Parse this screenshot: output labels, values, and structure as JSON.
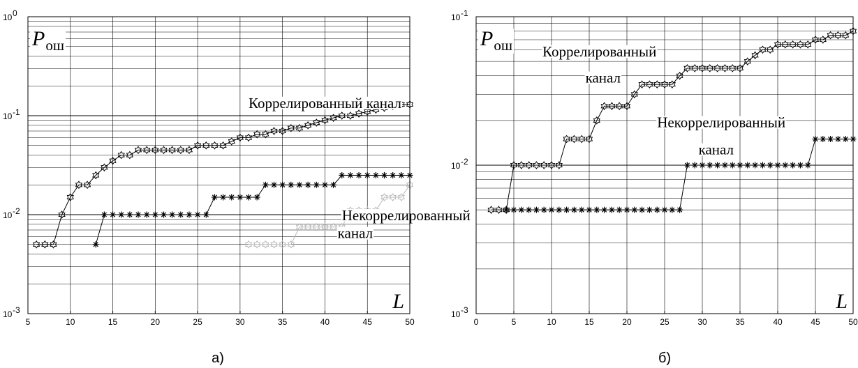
{
  "chart_data": [
    {
      "type": "line",
      "panel_label": "а)",
      "y_label_symbol": "P",
      "y_label_sub": "ош",
      "x_label_symbol": "L",
      "xlim": [
        5,
        50
      ],
      "ylim": [
        0.001,
        1
      ],
      "yscale": "log",
      "x_ticks": [
        5,
        10,
        15,
        20,
        25,
        30,
        35,
        40,
        45,
        50
      ],
      "x_tick_labels": [
        "5",
        "10",
        "15",
        "20",
        "25",
        "30",
        "35",
        "40",
        "45",
        "50"
      ],
      "y_tick_base": "10",
      "y_ticks": [
        0.001,
        0.01,
        0.1,
        1
      ],
      "y_tick_exponents": [
        "-3",
        "-2",
        "-1",
        "0"
      ],
      "grid": true,
      "series": [
        {
          "marker": "star-hex",
          "color": "#000000",
          "x": [
            6,
            7,
            8,
            9,
            10,
            11,
            12,
            13,
            14,
            15,
            16,
            17,
            18,
            19,
            20,
            21,
            22,
            23,
            24,
            25,
            26,
            27,
            28,
            29,
            30,
            31,
            32,
            33,
            34,
            35,
            36,
            37,
            38,
            39,
            40,
            41,
            42,
            43,
            44,
            45,
            46,
            47,
            48,
            49,
            50
          ],
          "y": [
            0.005,
            0.005,
            0.005,
            0.01,
            0.015,
            0.02,
            0.02,
            0.025,
            0.03,
            0.035,
            0.04,
            0.04,
            0.045,
            0.045,
            0.045,
            0.045,
            0.045,
            0.045,
            0.045,
            0.05,
            0.05,
            0.05,
            0.05,
            0.055,
            0.06,
            0.06,
            0.065,
            0.065,
            0.07,
            0.07,
            0.075,
            0.075,
            0.08,
            0.085,
            0.09,
            0.095,
            0.1,
            0.1,
            0.105,
            0.11,
            0.115,
            0.12,
            0.125,
            0.13,
            0.13
          ]
        },
        {
          "marker": "asterisk",
          "color": "#000000",
          "x": [
            13,
            14,
            15,
            16,
            17,
            18,
            19,
            20,
            21,
            22,
            23,
            24,
            25,
            26,
            27,
            28,
            29,
            30,
            31,
            32,
            33,
            34,
            35,
            36,
            37,
            38,
            39,
            40,
            41,
            42,
            43,
            44,
            45,
            46,
            47,
            48,
            49,
            50
          ],
          "y": [
            0.005,
            0.01,
            0.01,
            0.01,
            0.01,
            0.01,
            0.01,
            0.01,
            0.01,
            0.01,
            0.01,
            0.01,
            0.01,
            0.01,
            0.015,
            0.015,
            0.015,
            0.015,
            0.015,
            0.015,
            0.02,
            0.02,
            0.02,
            0.02,
            0.02,
            0.02,
            0.02,
            0.02,
            0.02,
            0.025,
            0.025,
            0.025,
            0.025,
            0.025,
            0.025,
            0.025,
            0.025,
            0.025
          ]
        },
        {
          "marker": "star-hex",
          "color": "#b8b8b8",
          "x": [
            31,
            32,
            33,
            34,
            35,
            36,
            37,
            38,
            39,
            40,
            41,
            42,
            43,
            44,
            45,
            46,
            47,
            48,
            49,
            50
          ],
          "y": [
            0.005,
            0.005,
            0.005,
            0.005,
            0.005,
            0.005,
            0.0075,
            0.0075,
            0.0075,
            0.0075,
            0.0075,
            0.0075,
            0.011,
            0.011,
            0.011,
            0.011,
            0.015,
            0.015,
            0.015,
            0.02
          ]
        }
      ],
      "annotations": [
        {
          "text": "Коррелированный канал",
          "x": 31,
          "y": 0.12
        },
        {
          "text": "Некоррелированный",
          "x": 42,
          "y": 0.0088
        },
        {
          "text": "канал",
          "x": 41.5,
          "y": 0.0058
        }
      ]
    },
    {
      "type": "line",
      "panel_label": "б)",
      "y_label_symbol": "P",
      "y_label_sub": "ош",
      "x_label_symbol": "L",
      "xlim": [
        0,
        50
      ],
      "ylim": [
        0.001,
        0.1
      ],
      "yscale": "log",
      "x_ticks": [
        0,
        5,
        10,
        15,
        20,
        25,
        30,
        35,
        40,
        45,
        50
      ],
      "x_tick_labels": [
        "0",
        "5",
        "10",
        "15",
        "20",
        "25",
        "30",
        "35",
        "40",
        "45",
        "50"
      ],
      "y_tick_base": "10",
      "y_ticks": [
        0.001,
        0.01,
        0.1
      ],
      "y_tick_exponents": [
        "-3",
        "-2",
        "-1"
      ],
      "grid": true,
      "series": [
        {
          "marker": "star-hex",
          "color": "#000000",
          "x": [
            2,
            3,
            4,
            5,
            6,
            7,
            8,
            9,
            10,
            11,
            12,
            13,
            14,
            15,
            16,
            17,
            18,
            19,
            20,
            21,
            22,
            23,
            24,
            25,
            26,
            27,
            28,
            29,
            30,
            31,
            32,
            33,
            34,
            35,
            36,
            37,
            38,
            39,
            40,
            41,
            42,
            43,
            44,
            45,
            46,
            47,
            48,
            49,
            50
          ],
          "y": [
            0.005,
            0.005,
            0.005,
            0.01,
            0.01,
            0.01,
            0.01,
            0.01,
            0.01,
            0.01,
            0.015,
            0.015,
            0.015,
            0.015,
            0.02,
            0.025,
            0.025,
            0.025,
            0.025,
            0.03,
            0.035,
            0.035,
            0.035,
            0.035,
            0.035,
            0.04,
            0.045,
            0.045,
            0.045,
            0.045,
            0.045,
            0.045,
            0.045,
            0.045,
            0.05,
            0.055,
            0.06,
            0.06,
            0.065,
            0.065,
            0.065,
            0.065,
            0.065,
            0.07,
            0.07,
            0.075,
            0.075,
            0.075,
            0.08
          ]
        },
        {
          "marker": "asterisk",
          "color": "#000000",
          "x": [
            4,
            5,
            6,
            7,
            8,
            9,
            10,
            11,
            12,
            13,
            14,
            15,
            16,
            17,
            18,
            19,
            20,
            21,
            22,
            23,
            24,
            25,
            26,
            27,
            28,
            29,
            30,
            31,
            32,
            33,
            34,
            35,
            36,
            37,
            38,
            39,
            40,
            41,
            42,
            43,
            44,
            45,
            46,
            47,
            48,
            49,
            50
          ],
          "y": [
            0.005,
            0.005,
            0.005,
            0.005,
            0.005,
            0.005,
            0.005,
            0.005,
            0.005,
            0.005,
            0.005,
            0.005,
            0.005,
            0.005,
            0.005,
            0.005,
            0.005,
            0.005,
            0.005,
            0.005,
            0.005,
            0.005,
            0.005,
            0.005,
            0.01,
            0.01,
            0.01,
            0.01,
            0.01,
            0.01,
            0.01,
            0.01,
            0.01,
            0.01,
            0.01,
            0.01,
            0.01,
            0.01,
            0.01,
            0.01,
            0.01,
            0.015,
            0.015,
            0.015,
            0.015,
            0.015,
            0.015
          ]
        }
      ],
      "annotations": [
        {
          "text": "Коррелированный",
          "x": 8.8,
          "y": 0.054
        },
        {
          "text": "канал",
          "x": 14.5,
          "y": 0.036
        },
        {
          "text": "Некоррелированный",
          "x": 24,
          "y": 0.018
        },
        {
          "text": "канал",
          "x": 29.5,
          "y": 0.0118
        }
      ]
    }
  ]
}
